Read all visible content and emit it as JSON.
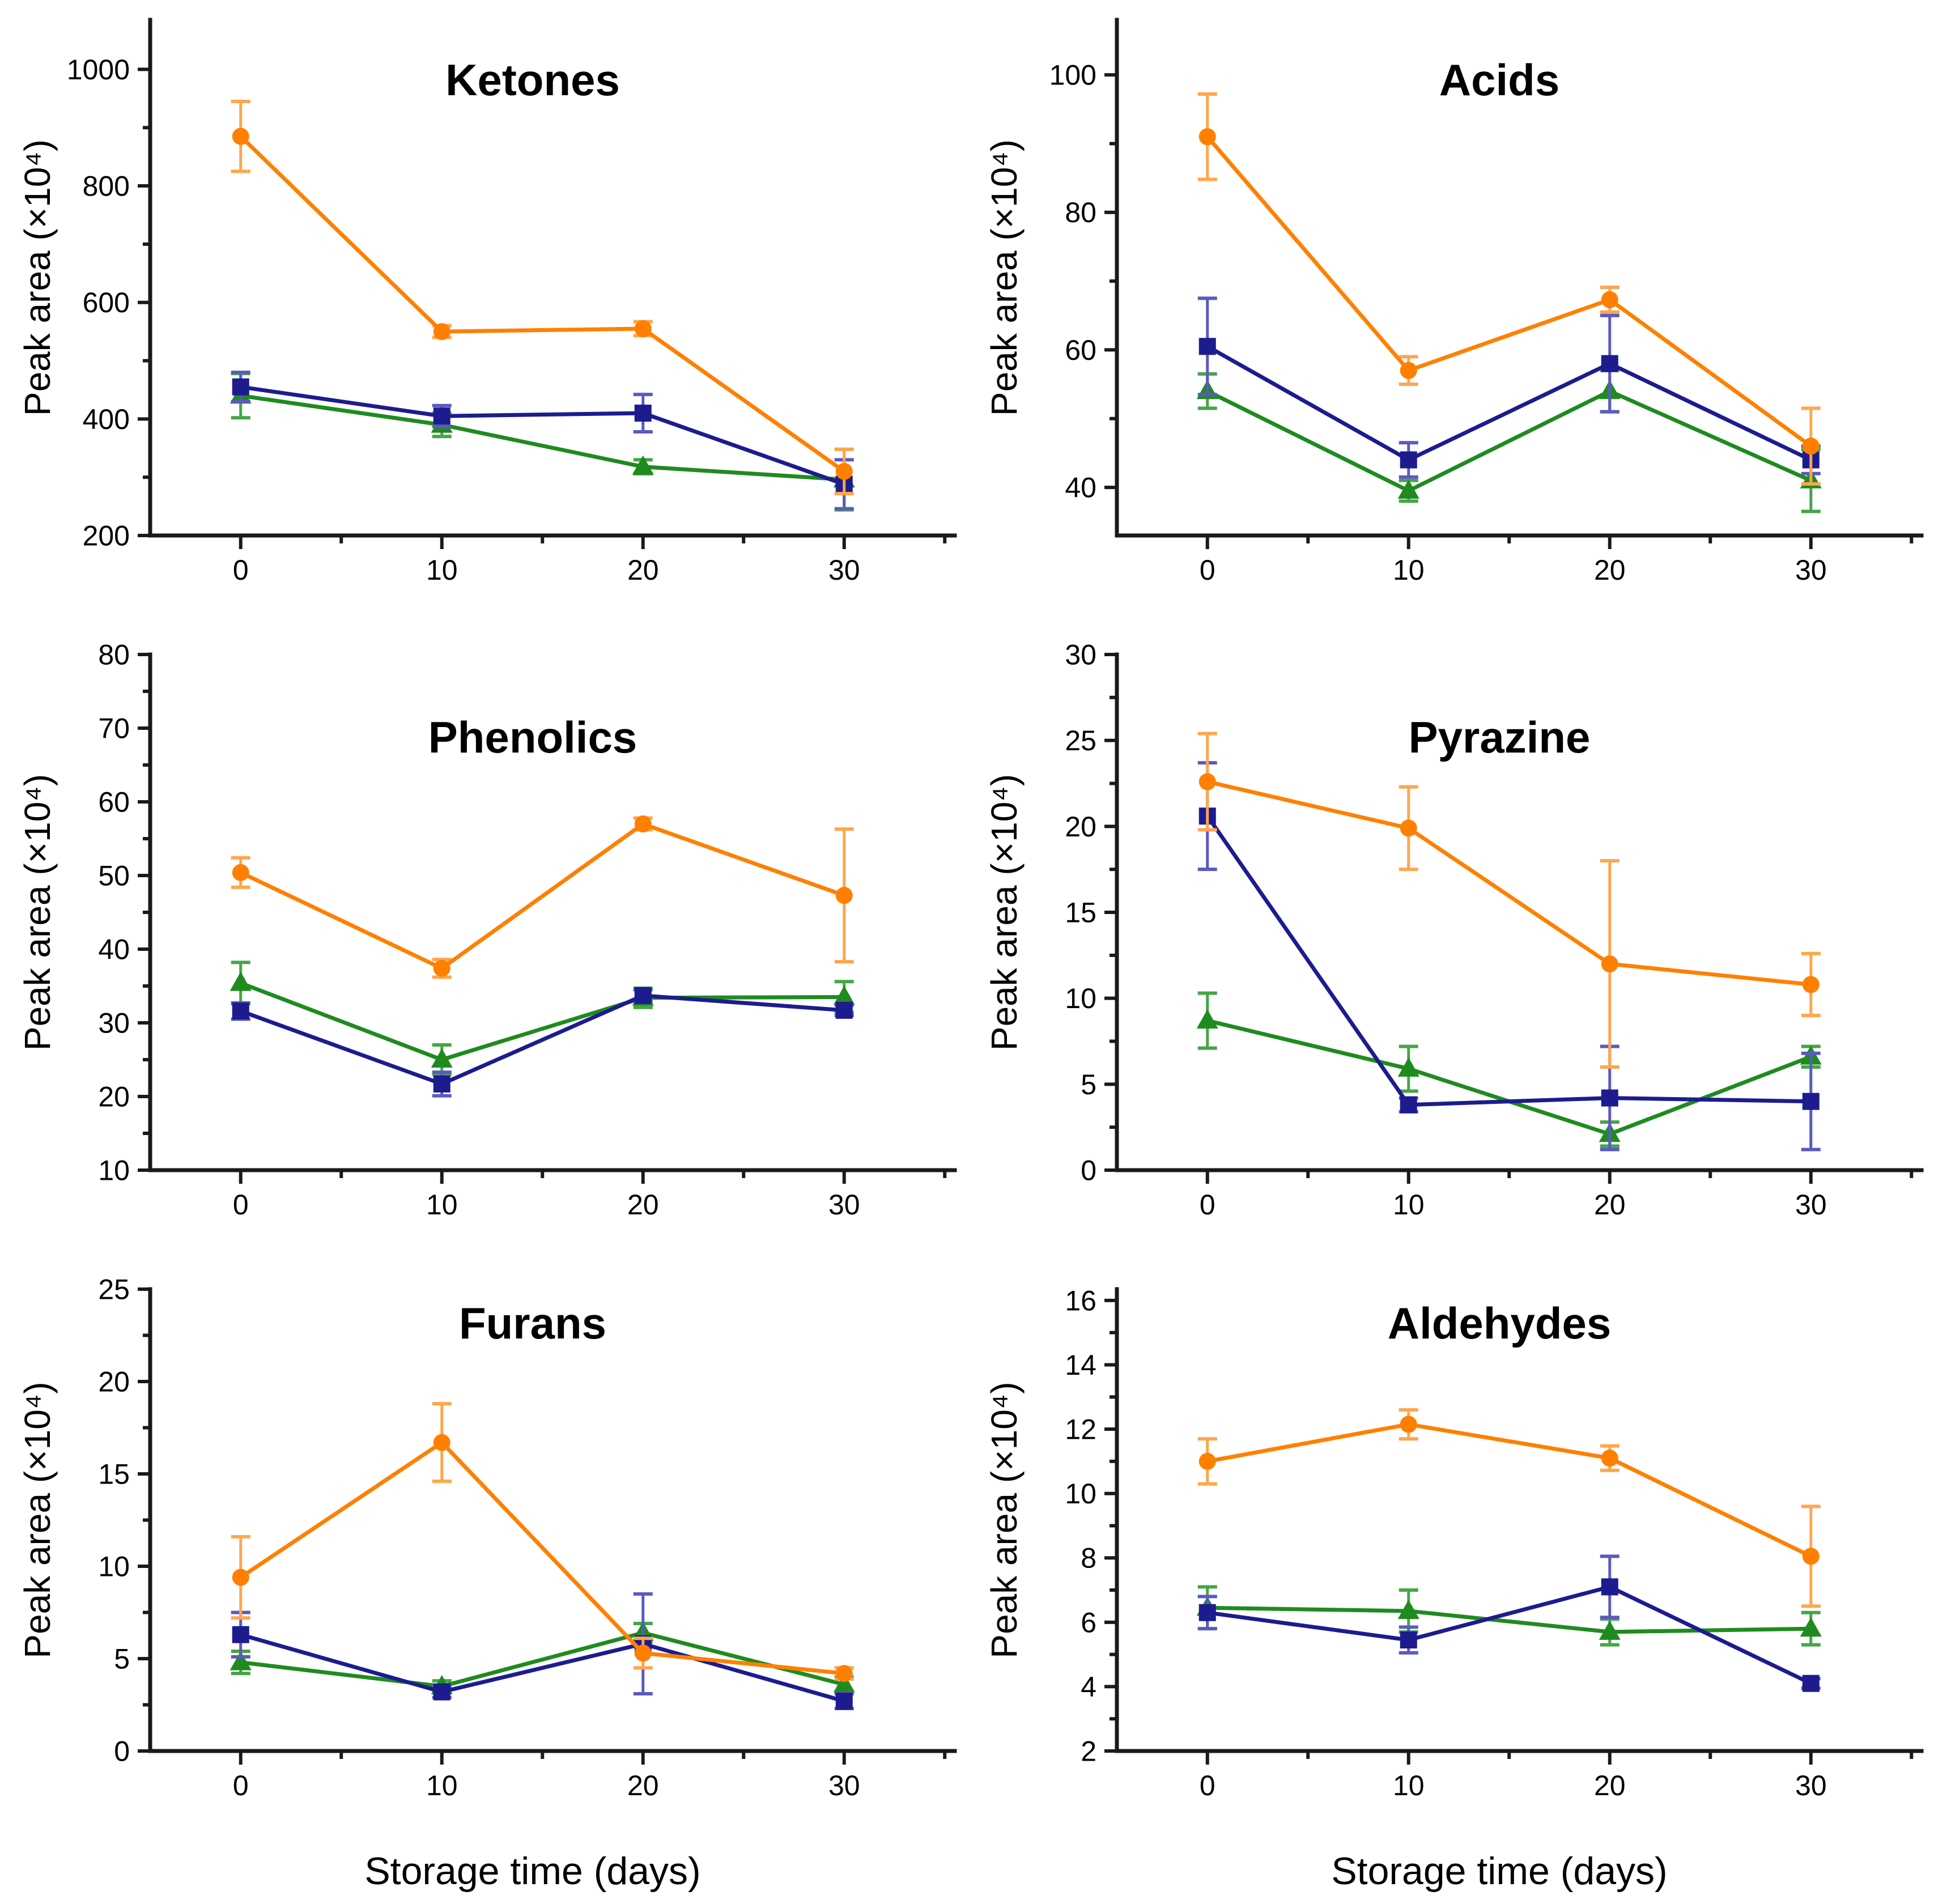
{
  "figure": {
    "background": "#ffffff",
    "axis_color": "#1a1a1a",
    "ylabel": "Peak area (×10⁴)",
    "xlabel": "Storage time (days)"
  },
  "chart_data": [
    {
      "type": "line",
      "title": "Ketones",
      "xlabel_shown": false,
      "x": [
        0,
        10,
        20,
        30
      ],
      "xlim": [
        -4.5,
        35.5
      ],
      "xticks": [
        0,
        10,
        20,
        30
      ],
      "xminor": [
        5,
        15,
        25,
        35
      ],
      "ylim": [
        200,
        1085
      ],
      "yticks": [
        200,
        400,
        600,
        800,
        1000
      ],
      "yminor": [
        300,
        500,
        700,
        900
      ],
      "series": [
        {
          "name": "green-triangle",
          "marker": "triangle",
          "color": "#1F8B1F",
          "light": "#46A546",
          "values": [
            440,
            390,
            318,
            296
          ],
          "errors": [
            38,
            20,
            12,
            52
          ]
        },
        {
          "name": "navy-square",
          "marker": "square",
          "color": "#1C1C8F",
          "light": "#5A5ABF",
          "values": [
            455,
            405,
            410,
            288
          ],
          "errors": [
            25,
            18,
            32,
            42
          ]
        },
        {
          "name": "orange-circle",
          "marker": "circle",
          "color": "#FF8000",
          "light": "#FFA64D",
          "values": [
            885,
            550,
            555,
            310
          ],
          "errors": [
            60,
            10,
            12,
            38
          ]
        }
      ]
    },
    {
      "type": "line",
      "title": "Acids",
      "xlabel_shown": false,
      "x": [
        0,
        10,
        20,
        30
      ],
      "xlim": [
        -4.5,
        35.5
      ],
      "xticks": [
        0,
        10,
        20,
        30
      ],
      "xminor": [
        5,
        15,
        25,
        35
      ],
      "ylim": [
        33,
        108
      ],
      "yticks": [
        40,
        60,
        80,
        100
      ],
      "yminor": [
        50,
        70,
        90
      ],
      "series": [
        {
          "name": "green-triangle",
          "marker": "triangle",
          "color": "#1F8B1F",
          "light": "#46A546",
          "values": [
            54,
            39.5,
            54,
            41
          ],
          "errors": [
            2.5,
            1.5,
            3,
            4.5
          ]
        },
        {
          "name": "navy-square",
          "marker": "square",
          "color": "#1C1C8F",
          "light": "#5A5ABF",
          "values": [
            60.5,
            44,
            58,
            44
          ],
          "errors": [
            7,
            2.5,
            7,
            2
          ]
        },
        {
          "name": "orange-circle",
          "marker": "circle",
          "color": "#FF8000",
          "light": "#FFA64D",
          "values": [
            91,
            57,
            67.3,
            46
          ],
          "errors": [
            6.2,
            2,
            1.8,
            5.5
          ]
        }
      ]
    },
    {
      "type": "line",
      "title": "Phenolics",
      "xlabel_shown": false,
      "x": [
        0,
        10,
        20,
        30
      ],
      "xlim": [
        -4.5,
        35.5
      ],
      "xticks": [
        0,
        10,
        20,
        30
      ],
      "xminor": [
        5,
        15,
        25,
        35
      ],
      "ylim": [
        10,
        80
      ],
      "yticks": [
        10,
        20,
        30,
        40,
        50,
        60,
        70,
        80
      ],
      "yminor": [
        15,
        25,
        35,
        45,
        55,
        65,
        75
      ],
      "series": [
        {
          "name": "green-triangle",
          "marker": "triangle",
          "color": "#1F8B1F",
          "light": "#46A546",
          "values": [
            35.4,
            25,
            33.4,
            33.5
          ],
          "errors": [
            2.8,
            2,
            1.3,
            2.1
          ]
        },
        {
          "name": "navy-square",
          "marker": "square",
          "color": "#1C1C8F",
          "light": "#5A5ABF",
          "values": [
            31.6,
            21.7,
            33.7,
            31.7
          ],
          "errors": [
            1.1,
            1.6,
            0.8,
            0.7
          ]
        },
        {
          "name": "orange-circle",
          "marker": "circle",
          "color": "#FF8000",
          "light": "#FFA64D",
          "values": [
            50.4,
            37.4,
            57,
            47.3
          ],
          "errors": [
            2,
            1.2,
            0.8,
            9
          ]
        }
      ]
    },
    {
      "type": "line",
      "title": "Pyrazine",
      "xlabel_shown": false,
      "x": [
        0,
        10,
        20,
        30
      ],
      "xlim": [
        -4.5,
        35.5
      ],
      "xticks": [
        0,
        10,
        20,
        30
      ],
      "xminor": [
        5,
        15,
        25,
        35
      ],
      "ylim": [
        0,
        30
      ],
      "yticks": [
        0,
        5,
        10,
        15,
        20,
        25,
        30
      ],
      "yminor": [
        2.5,
        7.5,
        12.5,
        17.5,
        22.5,
        27.5
      ],
      "series": [
        {
          "name": "green-triangle",
          "marker": "triangle",
          "color": "#1F8B1F",
          "light": "#46A546",
          "values": [
            8.7,
            5.9,
            2.1,
            6.6
          ],
          "errors": [
            1.6,
            1.3,
            0.7,
            0.6
          ]
        },
        {
          "name": "navy-square",
          "marker": "square",
          "color": "#1C1C8F",
          "light": "#5A5ABF",
          "values": [
            20.6,
            3.8,
            4.2,
            4.0
          ],
          "errors": [
            3.1,
            0.4,
            3.0,
            2.8
          ]
        },
        {
          "name": "orange-circle",
          "marker": "circle",
          "color": "#FF8000",
          "light": "#FFA64D",
          "values": [
            22.6,
            19.9,
            12.0,
            10.8
          ],
          "errors": [
            2.8,
            2.4,
            6.0,
            1.8
          ]
        }
      ]
    },
    {
      "type": "line",
      "title": "Furans",
      "xlabel_shown": true,
      "x": [
        0,
        10,
        20,
        30
      ],
      "xlim": [
        -4.5,
        35.5
      ],
      "xticks": [
        0,
        10,
        20,
        30
      ],
      "xminor": [
        5,
        15,
        25,
        35
      ],
      "ylim": [
        0,
        25
      ],
      "yticks": [
        0,
        5,
        10,
        15,
        20,
        25
      ],
      "yminor": [
        2.5,
        7.5,
        12.5,
        17.5,
        22.5
      ],
      "series": [
        {
          "name": "green-triangle",
          "marker": "triangle",
          "color": "#1F8B1F",
          "light": "#46A546",
          "values": [
            4.8,
            3.5,
            6.4,
            3.6
          ],
          "errors": [
            0.6,
            0.3,
            0.5,
            0.4
          ]
        },
        {
          "name": "navy-square",
          "marker": "square",
          "color": "#1C1C8F",
          "light": "#5A5ABF",
          "values": [
            6.3,
            3.2,
            5.8,
            2.7
          ],
          "errors": [
            1.2,
            0.3,
            2.7,
            0.4
          ]
        },
        {
          "name": "orange-circle",
          "marker": "circle",
          "color": "#FF8000",
          "light": "#FFA64D",
          "values": [
            9.4,
            16.7,
            5.3,
            4.2
          ],
          "errors": [
            2.2,
            2.1,
            0.8,
            0.3
          ]
        }
      ]
    },
    {
      "type": "line",
      "title": "Aldehydes",
      "xlabel_shown": true,
      "x": [
        0,
        10,
        20,
        30
      ],
      "xlim": [
        -4.5,
        35.5
      ],
      "xticks": [
        0,
        10,
        20,
        30
      ],
      "xminor": [
        5,
        15,
        25,
        35
      ],
      "ylim": [
        2,
        16.35
      ],
      "yticks": [
        2,
        4,
        6,
        8,
        10,
        12,
        14,
        16
      ],
      "yminor": [
        3,
        5,
        7,
        9,
        11,
        13,
        15
      ],
      "series": [
        {
          "name": "green-triangle",
          "marker": "triangle",
          "color": "#1F8B1F",
          "light": "#46A546",
          "values": [
            6.45,
            6.35,
            5.7,
            5.8
          ],
          "errors": [
            0.65,
            0.65,
            0.4,
            0.5
          ]
        },
        {
          "name": "navy-square",
          "marker": "square",
          "color": "#1C1C8F",
          "light": "#5A5ABF",
          "values": [
            6.3,
            5.45,
            7.1,
            4.1
          ],
          "errors": [
            0.5,
            0.4,
            0.95,
            0.15
          ]
        },
        {
          "name": "orange-circle",
          "marker": "circle",
          "color": "#FF8000",
          "light": "#FFA64D",
          "values": [
            11.0,
            12.15,
            11.1,
            8.05
          ],
          "errors": [
            0.7,
            0.45,
            0.38,
            1.55
          ]
        }
      ]
    }
  ]
}
